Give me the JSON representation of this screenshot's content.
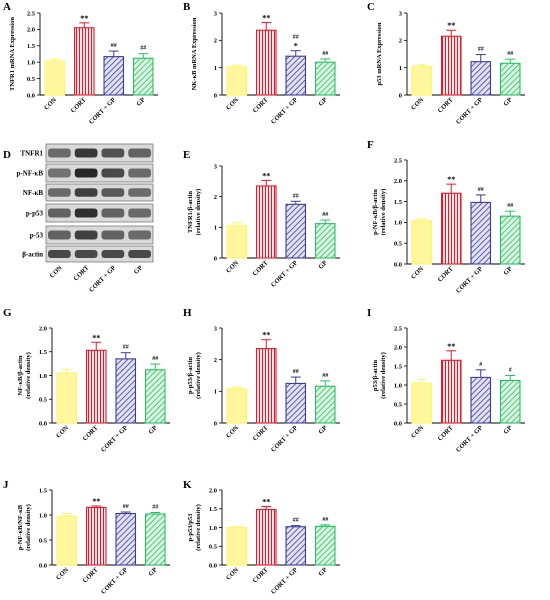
{
  "groups": [
    "CON",
    "CORT",
    "CORT + GP",
    "GP"
  ],
  "colors": {
    "CON": "#fff46a",
    "CORT": "#e8182c",
    "CORT + GP": "#3c3c9a",
    "GP": "#27c060",
    "CON_fill": "#fdfad0",
    "CORT_fill": "#fde7e7",
    "CORTGP_fill": "#e2e2f2",
    "GP_fill": "#dcf5e3"
  },
  "western_blot": {
    "panel_letter": "D",
    "lanes": [
      "CON",
      "CORT",
      "CORT + GP",
      "GP"
    ],
    "bands": [
      "TNFR1",
      "p-NF-κB",
      "NF-κB",
      "p-p53",
      "p-53",
      "β-actin"
    ]
  },
  "chart_data": [
    {
      "id": "A",
      "panel_letter": "A",
      "type": "bar",
      "ylabel": "TNFR1 mRNA Expression",
      "categories": [
        "CON",
        "CORT",
        "CORT + GP",
        "GP"
      ],
      "values": [
        1.03,
        2.05,
        1.17,
        1.12
      ],
      "errors": [
        0.06,
        0.15,
        0.17,
        0.14
      ],
      "significance": [
        "",
        "**",
        "##",
        "##"
      ],
      "ylim": [
        0,
        2.5
      ],
      "yticks": [
        "0.0",
        "0.5",
        "1.0",
        "1.5",
        "2.0",
        "2.5"
      ]
    },
    {
      "id": "B",
      "panel_letter": "B",
      "type": "bar",
      "ylabel": "NK-κB mRNA Expression",
      "categories": [
        "CON",
        "CORT",
        "CORT + GP",
        "GP"
      ],
      "values": [
        1.03,
        2.37,
        1.42,
        1.2
      ],
      "errors": [
        0.06,
        0.28,
        0.2,
        0.12
      ],
      "significance": [
        "",
        "**",
        "##\n*",
        "##"
      ],
      "ylim": [
        0,
        3
      ],
      "yticks": [
        "0",
        "1",
        "2",
        "3"
      ]
    },
    {
      "id": "C",
      "panel_letter": "C",
      "type": "bar",
      "ylabel": "p53 mRNA Expression",
      "categories": [
        "CON",
        "CORT",
        "CORT + GP",
        "GP"
      ],
      "values": [
        1.05,
        2.15,
        1.22,
        1.16
      ],
      "errors": [
        0.06,
        0.22,
        0.26,
        0.15
      ],
      "significance": [
        "",
        "**",
        "##",
        "##"
      ],
      "ylim": [
        0,
        3
      ],
      "yticks": [
        "0",
        "1",
        "2",
        "3"
      ]
    },
    {
      "id": "E",
      "panel_letter": "E",
      "type": "bar",
      "ylabel": "TNFR1/β-actin (relative density)",
      "categories": [
        "CON",
        "CORT",
        "CORT + GP",
        "GP"
      ],
      "values": [
        1.05,
        2.35,
        1.75,
        1.12
      ],
      "errors": [
        0.1,
        0.18,
        0.1,
        0.12
      ],
      "significance": [
        "",
        "**",
        "##",
        "##"
      ],
      "ylim": [
        0,
        3
      ],
      "yticks": [
        "0",
        "1",
        "2",
        "3"
      ]
    },
    {
      "id": "F",
      "panel_letter": "F",
      "type": "bar",
      "ylabel": "p-NF-κB/β-actin (relative density)",
      "categories": [
        "CON",
        "CORT",
        "CORT + GP",
        "GP"
      ],
      "values": [
        1.04,
        1.7,
        1.48,
        1.15
      ],
      "errors": [
        0.04,
        0.22,
        0.18,
        0.12
      ],
      "significance": [
        "",
        "**",
        "##",
        "##"
      ],
      "ylim": [
        0,
        2.5
      ],
      "yticks": [
        "0.0",
        "0.5",
        "1.0",
        "1.5",
        "2.0",
        "2.5"
      ]
    },
    {
      "id": "G",
      "panel_letter": "G",
      "type": "bar",
      "ylabel": "NF-κB/β-actin (relative density)",
      "categories": [
        "CON",
        "CORT",
        "CORT + GP",
        "GP"
      ],
      "values": [
        1.05,
        1.53,
        1.35,
        1.12
      ],
      "errors": [
        0.08,
        0.17,
        0.13,
        0.12
      ],
      "significance": [
        "",
        "**",
        "##",
        "##"
      ],
      "ylim": [
        0,
        2.0
      ],
      "yticks": [
        "0.0",
        "0.5",
        "1.0",
        "1.5",
        "2.0"
      ]
    },
    {
      "id": "H",
      "panel_letter": "H",
      "type": "bar",
      "ylabel": "p-p53/β-actin (relative density)",
      "categories": [
        "CON",
        "CORT",
        "CORT + GP",
        "GP"
      ],
      "values": [
        1.08,
        2.35,
        1.25,
        1.16
      ],
      "errors": [
        0.06,
        0.28,
        0.2,
        0.17
      ],
      "significance": [
        "",
        "**",
        "##",
        "##"
      ],
      "ylim": [
        0,
        3
      ],
      "yticks": [
        "0",
        "1",
        "2",
        "3"
      ]
    },
    {
      "id": "I",
      "panel_letter": "I",
      "type": "bar",
      "ylabel": "p53/β-actin (relative density)",
      "categories": [
        "CON",
        "CORT",
        "CORT + GP",
        "GP"
      ],
      "values": [
        1.05,
        1.65,
        1.2,
        1.12
      ],
      "errors": [
        0.1,
        0.25,
        0.2,
        0.13
      ],
      "significance": [
        "",
        "**",
        "#",
        "#"
      ],
      "ylim": [
        0,
        2.5
      ],
      "yticks": [
        "0.0",
        "0.5",
        "1.0",
        "1.5",
        "2.0",
        "2.5"
      ]
    },
    {
      "id": "J",
      "panel_letter": "J",
      "type": "bar",
      "ylabel": "p-NF-κB/NF-κB (relative density)",
      "categories": [
        "CON",
        "CORT",
        "CORT + GP",
        "GP"
      ],
      "values": [
        0.98,
        1.15,
        1.03,
        1.02
      ],
      "errors": [
        0.05,
        0.03,
        0.03,
        0.03
      ],
      "significance": [
        "",
        "**",
        "##",
        "##"
      ],
      "ylim": [
        0,
        1.5
      ],
      "yticks": [
        "0.0",
        "0.5",
        "1.0",
        "1.5"
      ]
    },
    {
      "id": "K",
      "panel_letter": "K",
      "type": "bar",
      "ylabel": "p-p53/p53 (relative density)",
      "categories": [
        "CON",
        "CORT",
        "CORT + GP",
        "GP"
      ],
      "values": [
        1.0,
        1.48,
        1.02,
        1.03
      ],
      "errors": [
        0.02,
        0.08,
        0.03,
        0.04
      ],
      "significance": [
        "",
        "**",
        "##",
        "##"
      ],
      "ylim": [
        0,
        2.0
      ],
      "yticks": [
        "0.0",
        "0.5",
        "1.0",
        "1.5",
        "2.0"
      ]
    }
  ]
}
